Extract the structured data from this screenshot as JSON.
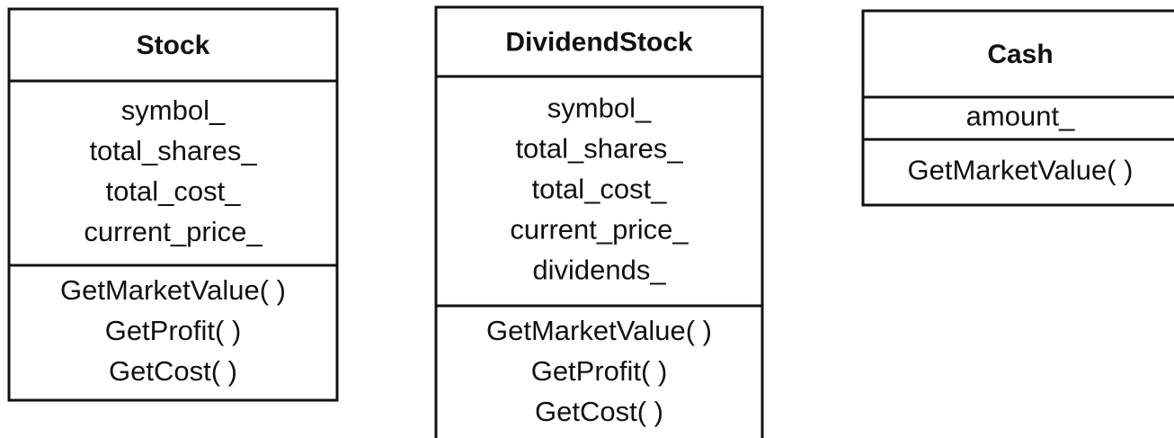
{
  "classes": [
    {
      "name": "Stock",
      "fields": [
        "symbol_",
        "total_shares_",
        "total_cost_",
        "current_price_"
      ],
      "methods": [
        "GetMarketValue( )",
        "GetProfit( )",
        "GetCost( )"
      ]
    },
    {
      "name": "DividendStock",
      "fields": [
        "symbol_",
        "total_shares_",
        "total_cost_",
        "current_price_",
        "dividends_"
      ],
      "methods": [
        "GetMarketValue( )",
        "GetProfit( )",
        "GetCost( )"
      ]
    },
    {
      "name": "Cash",
      "fields": [
        "amount_"
      ],
      "methods": [
        "GetMarketValue( )"
      ]
    }
  ]
}
